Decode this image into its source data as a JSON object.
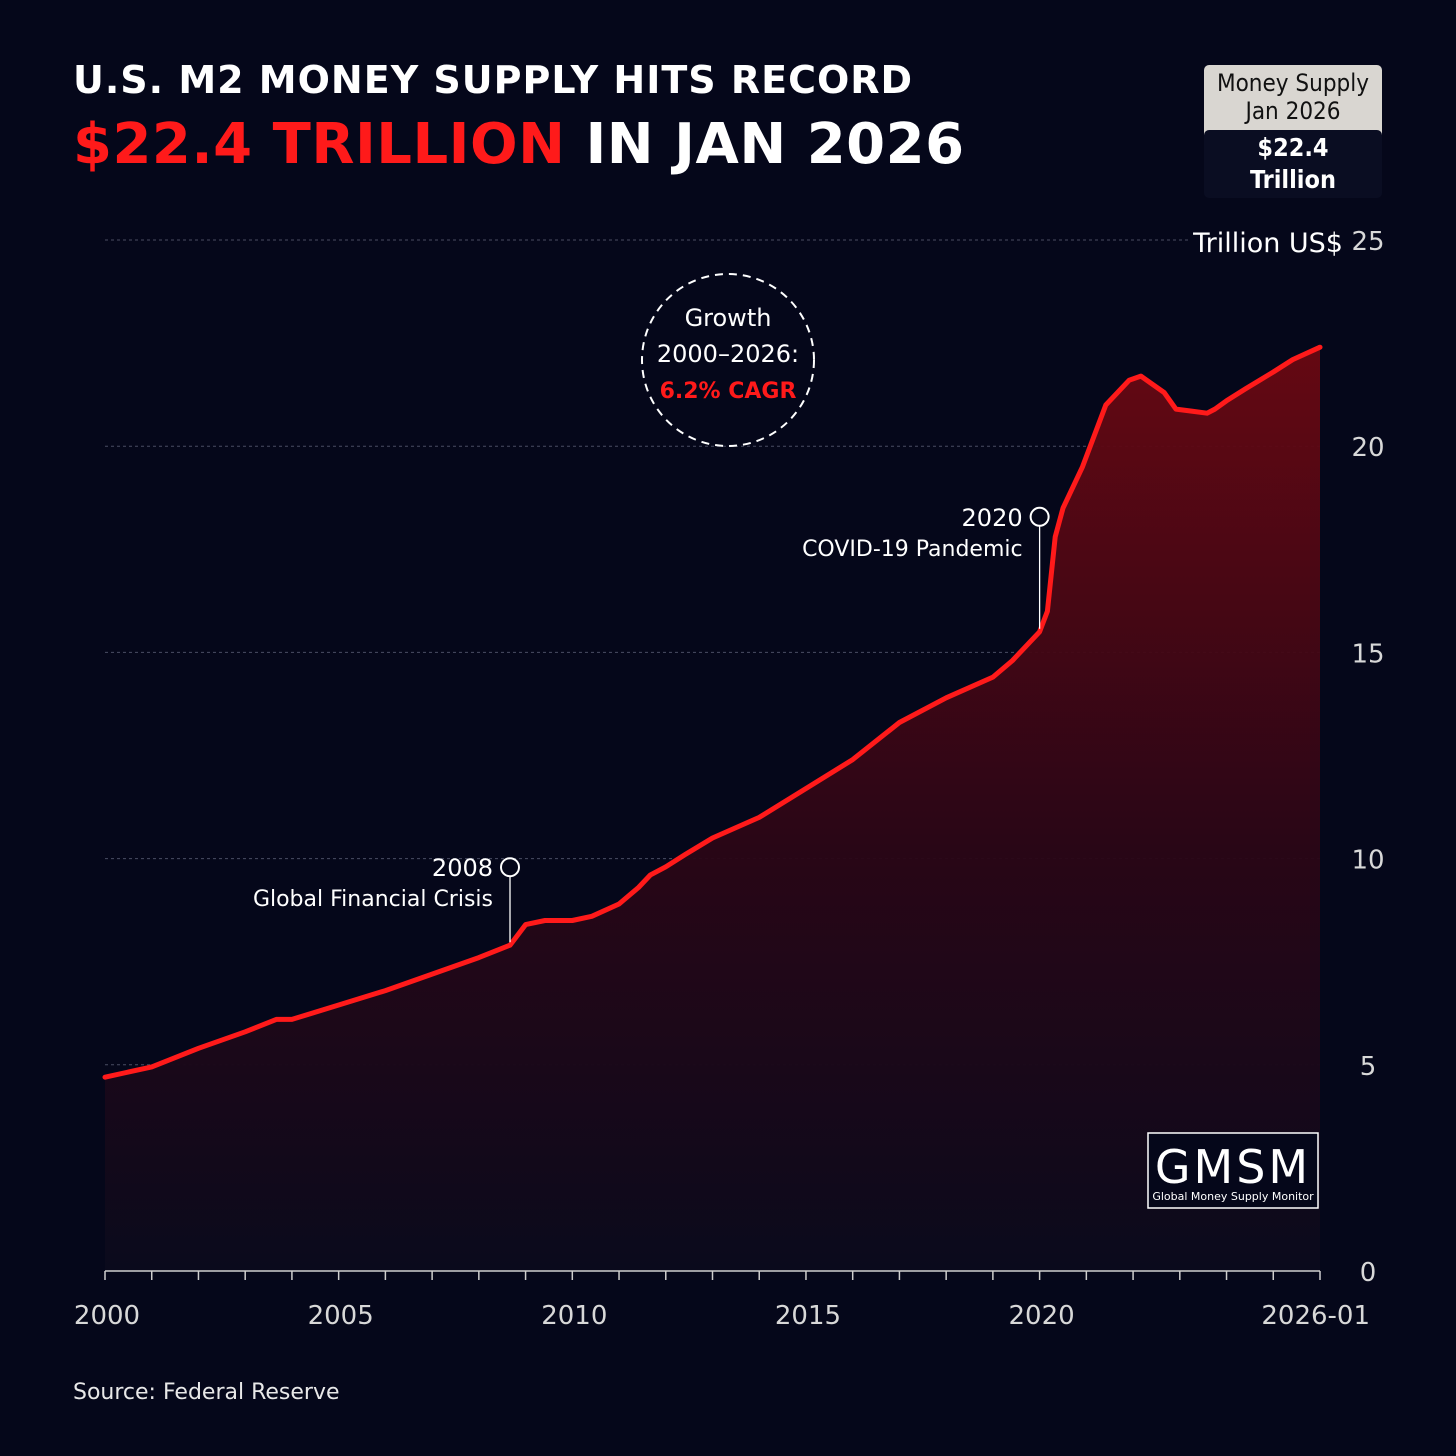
{
  "header": {
    "title_line1": "U.S. M2 MONEY SUPPLY HITS RECORD",
    "title_accent": "$22.4 TRILLION",
    "title_rest": " IN JAN 2026"
  },
  "badge": {
    "line1": "Money Supply",
    "line2": "Jan 2026",
    "value": "$22.4 Trillion"
  },
  "growth_note": {
    "line1": "Growth",
    "line2": "2000–2026:",
    "line3": "6.2% CAGR"
  },
  "logo": {
    "name": "GMSM",
    "subtitle": "Global Money Supply Monitor"
  },
  "source": "Source: Federal Reserve",
  "colors": {
    "background": "#05071a",
    "line": "#ff1a1a",
    "accent": "#ff1a1a"
  },
  "chart_data": {
    "type": "area",
    "ylabel": "Trillion US$",
    "ylim": [
      0,
      25
    ],
    "yticks": [
      0,
      5,
      10,
      15,
      20,
      25
    ],
    "xlim": [
      "2000-01",
      "2026-01"
    ],
    "xtick_labels": [
      "2000",
      "2005",
      "2010",
      "2015",
      "2020",
      "2026-01"
    ],
    "grid": true,
    "series": [
      {
        "x": [
          "2000-01",
          "2001-01",
          "2002-01",
          "2003-01",
          "2003-09",
          "2004-01",
          "2005-01",
          "2006-01",
          "2007-01",
          "2008-01",
          "2008-09",
          "2009-01",
          "2009-06",
          "2010-01",
          "2010-06",
          "2011-01",
          "2011-06",
          "2011-09",
          "2012-01",
          "2012-06",
          "2013-01",
          "2014-01",
          "2015-01",
          "2016-01",
          "2017-01",
          "2018-01",
          "2019-01",
          "2019-06",
          "2020-01",
          "2020-03",
          "2020-05",
          "2020-07",
          "2020-12",
          "2021-06",
          "2021-12",
          "2022-03",
          "2022-06",
          "2022-09",
          "2022-12",
          "2023-04",
          "2023-08",
          "2023-10",
          "2024-01",
          "2024-06",
          "2025-01",
          "2025-06",
          "2026-01"
        ],
        "values": [
          4.7,
          4.95,
          5.4,
          5.8,
          6.1,
          6.1,
          6.45,
          6.8,
          7.2,
          7.6,
          7.9,
          8.4,
          8.5,
          8.5,
          8.6,
          8.9,
          9.3,
          9.6,
          9.8,
          10.1,
          10.5,
          11.0,
          11.7,
          12.4,
          13.3,
          13.9,
          14.4,
          14.8,
          15.5,
          16.0,
          17.8,
          18.5,
          19.5,
          21.0,
          21.6,
          21.7,
          21.5,
          21.3,
          20.9,
          20.85,
          20.8,
          20.9,
          21.1,
          21.4,
          21.8,
          22.1,
          22.4
        ]
      }
    ],
    "annotations": [
      {
        "x": "2008-09",
        "y": 7.9,
        "year_label": "2008",
        "text": "Global Financial Crisis"
      },
      {
        "x": "2020-01",
        "y": 15.5,
        "year_label": "2020",
        "text": "COVID-19 Pandemic"
      }
    ]
  }
}
